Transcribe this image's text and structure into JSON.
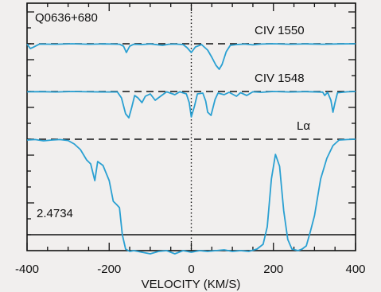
{
  "chart_data": {
    "type": "line",
    "title": "Q0636+680",
    "redshift_label": "2.4734",
    "xlabel": "VELOCITY (KM/S)",
    "ylabel": "",
    "xlim": [
      -400,
      400
    ],
    "xticks": [
      -400,
      -200,
      0,
      200,
      400
    ],
    "xtick_labels": [
      "-400",
      "-200",
      "0",
      "200",
      "400"
    ],
    "y_axis_labels": "none",
    "zero_velocity_marker": 0,
    "series": [
      {
        "name": "CIV 1550",
        "color": "#2aa0d2",
        "continuum_level": 1.0,
        "points": [
          [
            -400,
            0.98
          ],
          [
            -392,
            0.7
          ],
          [
            -385,
            0.78
          ],
          [
            -370,
            0.98
          ],
          [
            -330,
            0.97
          ],
          [
            -290,
            1.0
          ],
          [
            -250,
            0.97
          ],
          [
            -210,
            0.99
          ],
          [
            -175,
            0.97
          ],
          [
            -165,
            0.85
          ],
          [
            -158,
            0.45
          ],
          [
            -150,
            0.85
          ],
          [
            -140,
            0.97
          ],
          [
            -120,
            0.95
          ],
          [
            -100,
            0.99
          ],
          [
            -70,
            0.9
          ],
          [
            -55,
            0.97
          ],
          [
            -40,
            0.98
          ],
          [
            -20,
            0.95
          ],
          [
            -10,
            0.75
          ],
          [
            0,
            0.45
          ],
          [
            10,
            0.8
          ],
          [
            25,
            0.95
          ],
          [
            40,
            0.6
          ],
          [
            50,
            0.15
          ],
          [
            60,
            -0.35
          ],
          [
            68,
            -0.6
          ],
          [
            75,
            -0.3
          ],
          [
            85,
            0.5
          ],
          [
            95,
            0.9
          ],
          [
            110,
            0.95
          ],
          [
            130,
            0.98
          ],
          [
            150,
            0.93
          ],
          [
            170,
            0.98
          ],
          [
            200,
            1.0
          ],
          [
            240,
            0.97
          ],
          [
            280,
            0.99
          ],
          [
            320,
            0.97
          ],
          [
            360,
            0.99
          ],
          [
            400,
            1.0
          ]
        ]
      },
      {
        "name": "CIV 1548",
        "color": "#2aa0d2",
        "continuum_level": 1.0,
        "points": [
          [
            -400,
            0.98
          ],
          [
            -370,
            0.99
          ],
          [
            -330,
            0.97
          ],
          [
            -290,
            1.0
          ],
          [
            -250,
            0.98
          ],
          [
            -210,
            0.97
          ],
          [
            -180,
            0.97
          ],
          [
            -170,
            0.6
          ],
          [
            -160,
            -0.4
          ],
          [
            -152,
            -0.65
          ],
          [
            -145,
            0.0
          ],
          [
            -138,
            0.75
          ],
          [
            -130,
            0.6
          ],
          [
            -120,
            0.3
          ],
          [
            -112,
            0.7
          ],
          [
            -100,
            0.85
          ],
          [
            -88,
            0.45
          ],
          [
            -75,
            0.7
          ],
          [
            -60,
            0.98
          ],
          [
            -40,
            0.8
          ],
          [
            -28,
            0.98
          ],
          [
            -12,
            0.85
          ],
          [
            -5,
            0.3
          ],
          [
            0,
            -0.6
          ],
          [
            8,
            0.1
          ],
          [
            15,
            0.85
          ],
          [
            28,
            0.9
          ],
          [
            35,
            0.4
          ],
          [
            40,
            -0.3
          ],
          [
            48,
            -0.5
          ],
          [
            58,
            0.5
          ],
          [
            65,
            0.9
          ],
          [
            80,
            0.8
          ],
          [
            92,
            0.95
          ],
          [
            110,
            0.7
          ],
          [
            120,
            0.93
          ],
          [
            135,
            0.75
          ],
          [
            150,
            0.98
          ],
          [
            170,
            0.95
          ],
          [
            200,
            1.0
          ],
          [
            240,
            0.97
          ],
          [
            280,
            0.99
          ],
          [
            320,
            0.96
          ],
          [
            325,
            0.75
          ],
          [
            332,
            0.95
          ],
          [
            340,
            0.45
          ],
          [
            345,
            -0.3
          ],
          [
            350,
            0.3
          ],
          [
            356,
            0.92
          ],
          [
            380,
            0.98
          ],
          [
            400,
            1.0
          ]
        ]
      },
      {
        "name": "Lα",
        "color": "#2aa0d2",
        "continuum_level": 1.0,
        "points": [
          [
            -400,
            0.95
          ],
          [
            -380,
            0.98
          ],
          [
            -360,
            0.9
          ],
          [
            -340,
            0.95
          ],
          [
            -320,
            0.98
          ],
          [
            -300,
            0.92
          ],
          [
            -285,
            0.7
          ],
          [
            -270,
            0.35
          ],
          [
            -255,
            -0.3
          ],
          [
            -245,
            -0.55
          ],
          [
            -235,
            -1.6
          ],
          [
            -228,
            -0.4
          ],
          [
            -215,
            -0.65
          ],
          [
            -200,
            -1.6
          ],
          [
            -190,
            -2.9
          ],
          [
            -182,
            -3.1
          ],
          [
            -175,
            -3.3
          ],
          [
            -168,
            -5.0
          ],
          [
            -160,
            -5.9
          ],
          [
            -150,
            -6.05
          ],
          [
            -140,
            -6.0
          ],
          [
            -120,
            -6.1
          ],
          [
            -100,
            -6.2
          ],
          [
            -80,
            -6.05
          ],
          [
            -60,
            -6.0
          ],
          [
            -40,
            -6.2
          ],
          [
            -20,
            -6.0
          ],
          [
            0,
            -6.1
          ],
          [
            20,
            -6.0
          ],
          [
            40,
            -6.05
          ],
          [
            60,
            -6.0
          ],
          [
            80,
            -5.95
          ],
          [
            100,
            -6.05
          ],
          [
            120,
            -6.0
          ],
          [
            140,
            -6.05
          ],
          [
            160,
            -5.9
          ],
          [
            175,
            -5.6
          ],
          [
            185,
            -4.5
          ],
          [
            195,
            -1.5
          ],
          [
            205,
            0.05
          ],
          [
            215,
            -0.7
          ],
          [
            225,
            -3.5
          ],
          [
            235,
            -5.3
          ],
          [
            245,
            -5.9
          ],
          [
            260,
            -6.0
          ],
          [
            270,
            -5.9
          ],
          [
            280,
            -5.7
          ],
          [
            290,
            -4.8
          ],
          [
            300,
            -3.8
          ],
          [
            315,
            -1.5
          ],
          [
            330,
            -0.2
          ],
          [
            345,
            0.6
          ],
          [
            360,
            0.95
          ],
          [
            380,
            0.98
          ],
          [
            400,
            1.0
          ]
        ]
      }
    ]
  }
}
